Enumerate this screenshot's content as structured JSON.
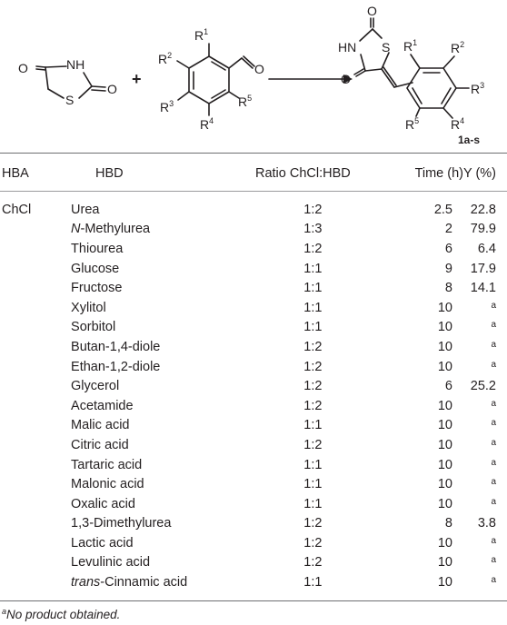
{
  "scheme": {
    "reactant1": {
      "o_label": "O",
      "nh_label": "NH",
      "o2_label": "O",
      "s_label": "S"
    },
    "plus": "+",
    "reactant2": {
      "r1": "R",
      "r1_n": "1",
      "r2": "R",
      "r2_n": "2",
      "r3": "R",
      "r3_n": "3",
      "r4": "R",
      "r4_n": "4",
      "r5": "R",
      "r5_n": "5",
      "o_label": "O"
    },
    "product": {
      "o_top": "O",
      "hn_label": "HN",
      "s_label": "S",
      "o_left": "O",
      "r1": "R",
      "r1_n": "1",
      "r2": "R",
      "r2_n": "2",
      "r3": "R",
      "r3_n": "3",
      "r4": "R",
      "r4_n": "4",
      "r5": "R",
      "r5_n": "5",
      "compound_label": "1a-s"
    }
  },
  "table": {
    "headers": {
      "hba": "HBA",
      "hbd": "HBD",
      "ratio": "Ratio ChCl:HBD",
      "time": "Time (h)",
      "yield": "Y (%)"
    },
    "hba_value": "ChCl",
    "rows": [
      {
        "hbd": "Urea",
        "ratio": "1:2",
        "time": "2.5",
        "yield": "22.8"
      },
      {
        "hbd_prefix": "N",
        "hbd": "-Methylurea",
        "ratio": "1:3",
        "time": "2",
        "yield": "79.9"
      },
      {
        "hbd": "Thiourea",
        "ratio": "1:2",
        "time": "6",
        "yield": "6.4"
      },
      {
        "hbd": "Glucose",
        "ratio": "1:1",
        "time": "9",
        "yield": "17.9"
      },
      {
        "hbd": "Fructose",
        "ratio": "1:1",
        "time": "8",
        "yield": "14.1"
      },
      {
        "hbd": "Xylitol",
        "ratio": "1:1",
        "time": "10",
        "yield_note": "a"
      },
      {
        "hbd": "Sorbitol",
        "ratio": "1:1",
        "time": "10",
        "yield_note": "a"
      },
      {
        "hbd": "Butan-1,4-diole",
        "ratio": "1:2",
        "time": "10",
        "yield_note": "a"
      },
      {
        "hbd": "Ethan-1,2-diole",
        "ratio": "1:2",
        "time": "10",
        "yield_note": "a"
      },
      {
        "hbd": "Glycerol",
        "ratio": "1:2",
        "time": "6",
        "yield": "25.2"
      },
      {
        "hbd": "Acetamide",
        "ratio": "1:2",
        "time": "10",
        "yield_note": "a"
      },
      {
        "hbd": "Malic acid",
        "ratio": "1:1",
        "time": "10",
        "yield_note": "a"
      },
      {
        "hbd": "Citric acid",
        "ratio": "1:2",
        "time": "10",
        "yield_note": "a"
      },
      {
        "hbd": "Tartaric acid",
        "ratio": "1:1",
        "time": "10",
        "yield_note": "a"
      },
      {
        "hbd": "Malonic acid",
        "ratio": "1:1",
        "time": "10",
        "yield_note": "a"
      },
      {
        "hbd": "Oxalic acid",
        "ratio": "1:1",
        "time": "10",
        "yield_note": "a"
      },
      {
        "hbd": "1,3-Dimethylurea",
        "ratio": "1:2",
        "time": "8",
        "yield": "3.8"
      },
      {
        "hbd": "Lactic acid",
        "ratio": "1:2",
        "time": "10",
        "yield_note": "a"
      },
      {
        "hbd": "Levulinic acid",
        "ratio": "1:2",
        "time": "10",
        "yield_note": "a"
      },
      {
        "hbd_prefix": "trans",
        "hbd": "-Cinnamic acid",
        "ratio": "1:1",
        "time": "10",
        "yield_note": "a"
      }
    ]
  },
  "footnote": {
    "marker": "a",
    "text": "No product obtained."
  }
}
